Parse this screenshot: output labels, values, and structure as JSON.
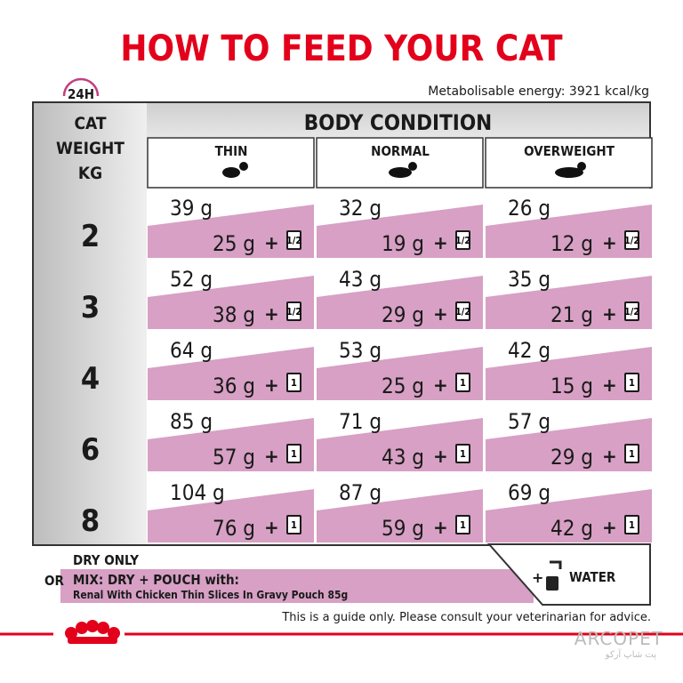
{
  "title": "HOW TO FEED YOUR CAT",
  "badge": "24H",
  "energy": "Metabolisable energy: 3921 kcal/kg",
  "table": {
    "weight_header": [
      "CAT",
      "WEIGHT",
      "KG"
    ],
    "group_header": "BODY CONDITION",
    "columns": [
      "THIN",
      "NORMAL",
      "OVERWEIGHT"
    ],
    "plus": "+",
    "rows": [
      {
        "weight": "2",
        "cells": [
          {
            "dry": "39 g",
            "mix": "25 g",
            "pouch": "1/2"
          },
          {
            "dry": "32 g",
            "mix": "19 g",
            "pouch": "1/2"
          },
          {
            "dry": "26 g",
            "mix": "12 g",
            "pouch": "1/2"
          }
        ]
      },
      {
        "weight": "3",
        "cells": [
          {
            "dry": "52 g",
            "mix": "38 g",
            "pouch": "1/2"
          },
          {
            "dry": "43 g",
            "mix": "29 g",
            "pouch": "1/2"
          },
          {
            "dry": "35 g",
            "mix": "21 g",
            "pouch": "1/2"
          }
        ]
      },
      {
        "weight": "4",
        "cells": [
          {
            "dry": "64 g",
            "mix": "36 g",
            "pouch": "1"
          },
          {
            "dry": "53 g",
            "mix": "25 g",
            "pouch": "1"
          },
          {
            "dry": "42 g",
            "mix": "15 g",
            "pouch": "1"
          }
        ]
      },
      {
        "weight": "6",
        "cells": [
          {
            "dry": "85 g",
            "mix": "57 g",
            "pouch": "1"
          },
          {
            "dry": "71 g",
            "mix": "43 g",
            "pouch": "1"
          },
          {
            "dry": "57 g",
            "mix": "29 g",
            "pouch": "1"
          }
        ]
      },
      {
        "weight": "8",
        "cells": [
          {
            "dry": "104 g",
            "mix": "76 g",
            "pouch": "1"
          },
          {
            "dry": "87 g",
            "mix": "59 g",
            "pouch": "1"
          },
          {
            "dry": "69 g",
            "mix": "42 g",
            "pouch": "1"
          }
        ]
      }
    ]
  },
  "legend": {
    "dry_only": "DRY ONLY",
    "or": "OR",
    "mix": "MIX: DRY + POUCH with:",
    "pouch_name": "Renal With Chicken Thin Slices In Gravy Pouch 85g",
    "plus": "+",
    "water": "WATER"
  },
  "footer": "This is a guide only. Please consult your veterinarian for advice.",
  "watermark": {
    "brand": "ARCOPET",
    "subtitle": "پت شاپ آرکو"
  }
}
